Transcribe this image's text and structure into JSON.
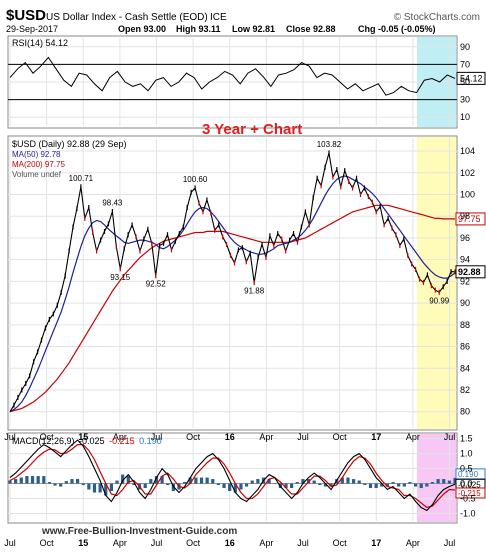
{
  "header": {
    "symbol": "$USD",
    "name": "US Dollar Index - Cash Settle (EOD)",
    "exchange": "ICE",
    "brand": "© StockCharts.com",
    "date": "29-Sep-2017",
    "open": "Open 93.00",
    "high": "High 93.11",
    "low": "Low 92.81",
    "close": "Close 92.88",
    "chg": "Chg -0.05 (-0.05%)"
  },
  "overlay_title": "3 Year + Chart",
  "watermark": "www.Free-Bullion-Investment-Guide.com",
  "colors": {
    "price": "#000000",
    "ma50": "#1f1f9a",
    "ma200": "#cc0000",
    "macd": "#000000",
    "signal": "#cc0000",
    "histogram": "#2a5f8a",
    "highlight_yellow": "#fffbb8",
    "highlight_magenta": "#f7c8f5",
    "overlay_title": "#e02020",
    "peak_label": "#000000",
    "marker_red": "#cc0000"
  },
  "chart_data": [
    {
      "type": "line",
      "panel": "rsi",
      "legend": "RSI(14) 54.12",
      "ylim": [
        0,
        100
      ],
      "y_ticks": [
        "90",
        "70",
        "50",
        "30",
        "10"
      ],
      "reference_lines": [
        70,
        30
      ],
      "last_value": "54.12",
      "series": [
        {
          "name": "RSI(14)",
          "values": [
            55,
            65,
            72,
            60,
            68,
            78,
            65,
            52,
            45,
            60,
            58,
            48,
            40,
            55,
            62,
            50,
            45,
            48,
            40,
            52,
            55,
            45,
            50,
            60,
            55,
            42,
            50,
            55,
            62,
            58,
            48,
            60,
            65,
            56,
            45,
            58,
            60,
            64,
            72,
            68,
            55,
            60,
            58,
            50,
            42,
            48,
            40,
            44,
            48,
            35,
            38,
            45,
            40,
            38,
            52,
            54,
            50,
            58,
            54.12
          ]
        }
      ]
    },
    {
      "type": "line",
      "panel": "price",
      "legend": [
        "$USD (Daily) 92.88 (29 Sep)",
        "MA(50) 92.78",
        "MA(200) 97.75",
        "Volume undef"
      ],
      "ylim": [
        78.5,
        105.2
      ],
      "y_ticks": [
        "104",
        "102",
        "100",
        "98",
        "96",
        "94",
        "92",
        "90",
        "88",
        "86",
        "84",
        "82",
        "80"
      ],
      "right_labels": [
        "97.75",
        "92.88"
      ],
      "x_ticks": [
        "Jul",
        "Oct",
        "15",
        "Apr",
        "Jul",
        "Oct",
        "16",
        "Apr",
        "Jul",
        "Oct",
        "17",
        "Apr",
        "Jul"
      ],
      "annotations": [
        "100.71",
        "98.43",
        "93.15",
        "92.52",
        "100.60",
        "91.88",
        "103.82",
        "90.99"
      ],
      "series": [
        {
          "name": "$USD",
          "values": [
            80.0,
            80.6,
            81.3,
            82.0,
            82.6,
            83.3,
            84.6,
            85.5,
            86.6,
            87.7,
            88.5,
            89.0,
            89.8,
            91.0,
            92.5,
            94.8,
            97.0,
            98.7,
            100.71,
            97.8,
            98.8,
            96.5,
            94.8,
            95.8,
            96.6,
            97.3,
            98.43,
            95.2,
            93.15,
            95.0,
            96.3,
            97.2,
            96.1,
            94.8,
            95.9,
            96.8,
            95.5,
            92.52,
            95.3,
            95.5,
            96.3,
            94.9,
            95.7,
            96.4,
            97.0,
            98.8,
            100.2,
            100.6,
            99.2,
            98.4,
            99.5,
            98.3,
            96.7,
            97.2,
            96.1,
            95.4,
            94.4,
            93.7,
            94.9,
            95.1,
            93.8,
            94.6,
            91.88,
            94.2,
            95.4,
            94.2,
            96.2,
            95.3,
            96.4,
            95.9,
            94.8,
            95.8,
            96.4,
            95.6,
            97.0,
            98.4,
            97.2,
            99.7,
            101.5,
            100.8,
            102.5,
            103.82,
            101.6,
            102.3,
            100.7,
            102.2,
            101.2,
            100.6,
            101.5,
            100.0,
            100.6,
            99.8,
            99.3,
            98.4,
            98.9,
            97.2,
            97.8,
            96.9,
            96.3,
            95.3,
            95.9,
            94.4,
            93.6,
            93.1,
            92.2,
            91.9,
            92.6,
            91.6,
            91.2,
            90.99,
            91.5,
            92.0,
            92.9,
            92.88
          ]
        },
        {
          "name": "MA(50)",
          "values": [
            80.0,
            80.2,
            80.5,
            80.9,
            81.5,
            82.2,
            83.0,
            83.8,
            84.7,
            85.6,
            86.5,
            87.4,
            88.3,
            89.2,
            90.3,
            91.5,
            92.8,
            94.0,
            95.2,
            96.2,
            96.9,
            97.4,
            97.6,
            97.5,
            97.2,
            96.8,
            96.5,
            96.2,
            95.9,
            95.6,
            95.5,
            95.6,
            95.7,
            95.8,
            95.8,
            95.7,
            95.6,
            95.4,
            95.1,
            95.0,
            95.2,
            95.5,
            95.8,
            96.2,
            96.7,
            97.3,
            97.9,
            98.4,
            98.7,
            98.8,
            98.7,
            98.4,
            98.0,
            97.5,
            97.0,
            96.5,
            96.0,
            95.6,
            95.3,
            95.1,
            94.9,
            94.7,
            94.6,
            94.5,
            94.5,
            94.6,
            94.8,
            95.0,
            95.3,
            95.4,
            95.5,
            95.6,
            95.8,
            96.0,
            96.3,
            96.7,
            97.2,
            97.8,
            98.5,
            99.2,
            99.9,
            100.5,
            101.0,
            101.4,
            101.6,
            101.7,
            101.6,
            101.4,
            101.2,
            101.0,
            100.7,
            100.4,
            100.1,
            99.7,
            99.2,
            98.7,
            98.2,
            97.7,
            97.2,
            96.7,
            96.2,
            95.7,
            95.2,
            94.7,
            94.2,
            93.7,
            93.3,
            92.9,
            92.6,
            92.4,
            92.3,
            92.3,
            92.5,
            92.78
          ]
        },
        {
          "name": "MA(200)",
          "values": [
            80.0,
            80.1,
            80.2,
            80.3,
            80.5,
            80.7,
            80.9,
            81.2,
            81.5,
            81.8,
            82.2,
            82.6,
            83.0,
            83.5,
            84.0,
            84.5,
            85.1,
            85.7,
            86.3,
            86.9,
            87.5,
            88.1,
            88.7,
            89.3,
            89.9,
            90.5,
            91.1,
            91.6,
            92.1,
            92.6,
            93.0,
            93.4,
            93.8,
            94.2,
            94.5,
            94.8,
            95.1,
            95.3,
            95.5,
            95.7,
            95.8,
            95.9,
            96.0,
            96.1,
            96.2,
            96.3,
            96.4,
            96.5,
            96.5,
            96.5,
            96.6,
            96.6,
            96.6,
            96.6,
            96.6,
            96.5,
            96.4,
            96.3,
            96.2,
            96.1,
            96.0,
            95.9,
            95.8,
            95.7,
            95.6,
            95.6,
            95.6,
            95.6,
            95.6,
            95.6,
            95.6,
            95.6,
            95.7,
            95.8,
            95.9,
            96.0,
            96.2,
            96.4,
            96.6,
            96.8,
            97.0,
            97.2,
            97.4,
            97.6,
            97.8,
            98.0,
            98.2,
            98.4,
            98.5,
            98.6,
            98.7,
            98.8,
            98.9,
            99.0,
            99.0,
            99.0,
            99.0,
            98.9,
            98.8,
            98.7,
            98.6,
            98.5,
            98.4,
            98.3,
            98.2,
            98.1,
            98.0,
            97.9,
            97.8,
            97.8,
            97.75,
            97.75,
            97.75,
            97.75
          ]
        }
      ]
    },
    {
      "type": "line",
      "panel": "macd",
      "legend": [
        "MACD(12,26,9)",
        "-0.025",
        "-0.215",
        "0.190"
      ],
      "ylim": [
        -1.25,
        1.62
      ],
      "y_ticks": [
        "1.5",
        "1.0",
        "0.5",
        "0.0",
        "-0.5",
        "-1.0"
      ],
      "right_labels": [
        "0.190",
        "-0.025",
        "-0.215"
      ],
      "x_ticks": [
        "Jul",
        "Oct",
        "15",
        "Apr",
        "Jul",
        "Oct",
        "16",
        "Apr",
        "Jul",
        "Oct",
        "17",
        "Apr",
        "Jul"
      ],
      "series": [
        {
          "name": "MACD",
          "values": [
            0.2,
            0.35,
            0.55,
            0.75,
            0.95,
            1.15,
            1.3,
            1.2,
            1.05,
            0.9,
            1.1,
            1.3,
            1.45,
            1.25,
            0.9,
            0.5,
            0.1,
            -0.4,
            -0.6,
            -0.3,
            0.1,
            0.3,
            0.05,
            -0.3,
            -0.5,
            -0.2,
            0.2,
            0.5,
            0.3,
            -0.1,
            -0.3,
            -0.1,
            0.2,
            0.5,
            0.7,
            0.9,
            1.0,
            0.8,
            0.5,
            0.1,
            -0.3,
            -0.5,
            -0.6,
            -0.4,
            -0.2,
            0.1,
            0.3,
            0.2,
            -0.1,
            -0.3,
            -0.5,
            -0.3,
            0.0,
            0.2,
            0.35,
            0.2,
            0.0,
            -0.2,
            0.1,
            0.4,
            0.7,
            0.9,
            1.0,
            0.8,
            0.5,
            0.2,
            0.0,
            -0.2,
            -0.1,
            -0.3,
            -0.5,
            -0.35,
            -0.6,
            -0.8,
            -0.9,
            -0.7,
            -0.4,
            -0.2,
            -0.1,
            -0.025
          ]
        },
        {
          "name": "Signal",
          "values": [
            0.1,
            0.2,
            0.35,
            0.5,
            0.7,
            0.9,
            1.05,
            1.15,
            1.12,
            1.0,
            1.02,
            1.15,
            1.3,
            1.3,
            1.1,
            0.8,
            0.4,
            0.0,
            -0.35,
            -0.4,
            -0.2,
            0.05,
            0.1,
            -0.1,
            -0.35,
            -0.35,
            -0.05,
            0.25,
            0.35,
            0.15,
            -0.1,
            -0.15,
            0.0,
            0.3,
            0.5,
            0.7,
            0.85,
            0.85,
            0.65,
            0.35,
            0.0,
            -0.3,
            -0.5,
            -0.5,
            -0.35,
            -0.1,
            0.15,
            0.2,
            0.05,
            -0.15,
            -0.35,
            -0.35,
            -0.15,
            0.05,
            0.25,
            0.25,
            0.1,
            -0.1,
            -0.05,
            0.2,
            0.5,
            0.75,
            0.9,
            0.85,
            0.65,
            0.35,
            0.1,
            -0.1,
            -0.15,
            -0.2,
            -0.4,
            -0.4,
            -0.5,
            -0.65,
            -0.8,
            -0.75,
            -0.55,
            -0.35,
            -0.2,
            -0.215
          ]
        }
      ]
    }
  ]
}
